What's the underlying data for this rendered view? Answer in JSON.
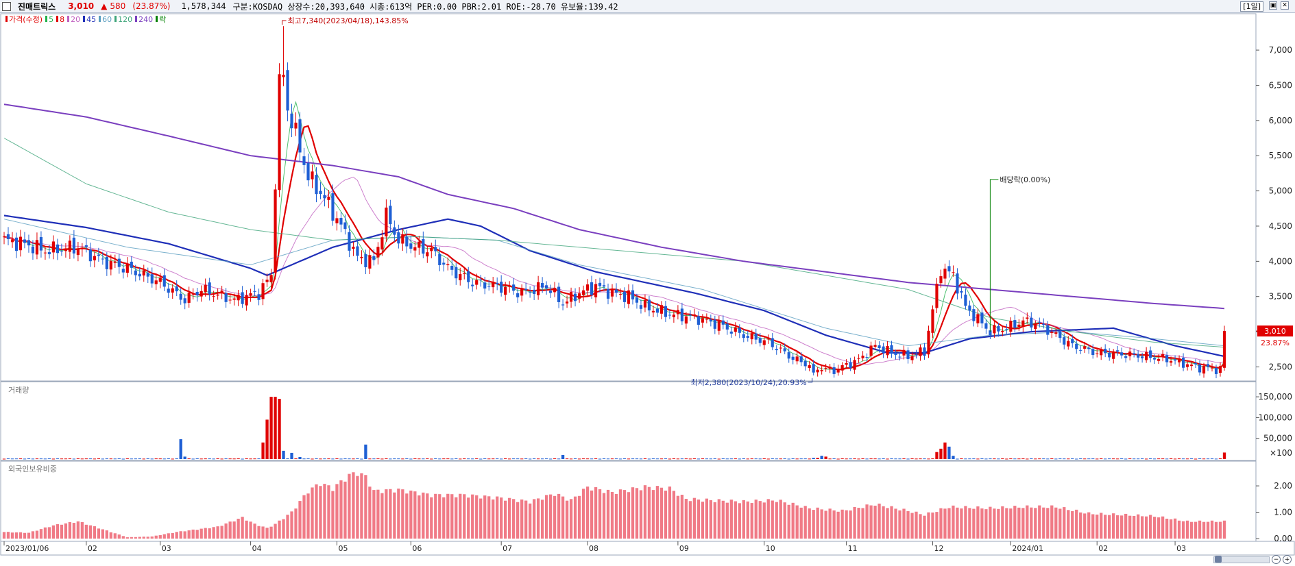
{
  "header": {
    "stock_name": "진매트릭스",
    "price": "3,010",
    "change_arrow": "▲",
    "change": "580",
    "change_pct": "(23.87%)",
    "volume": "1,578,344",
    "info": "구분:KOSDAQ 상장수:20,393,640 시총:613억 PER:0.00 PBR:2.01 ROE:-28.70 유보율:139.42",
    "period": "[1일]",
    "buttons": [
      "▣",
      "✕"
    ]
  },
  "legend": {
    "items": [
      {
        "label": "가격(수정)",
        "color": "#e00000"
      },
      {
        "label": "5",
        "color": "#22b14c"
      },
      {
        "label": "8",
        "color": "#e00000"
      },
      {
        "label": "20",
        "color": "#c060c0"
      },
      {
        "label": "45",
        "color": "#1f2fb8"
      },
      {
        "label": "60",
        "color": "#5a9ec0"
      },
      {
        "label": "120",
        "color": "#3fa57a"
      },
      {
        "label": "240",
        "color": "#7a3fbf"
      },
      {
        "label": "락",
        "color": "#008000"
      }
    ]
  },
  "volume_pane": {
    "title": "거래량"
  },
  "foreign_pane": {
    "title": "외국인보유비중"
  },
  "chart_data": [
    {
      "type": "candlestick",
      "title": "가격(수정)",
      "ylim": [
        2300,
        7400
      ],
      "y_ticks": [
        "7,000",
        "6,500",
        "6,000",
        "5,500",
        "5,000",
        "4,500",
        "4,000",
        "3,500",
        "3,000",
        "2,500"
      ],
      "y_tick_values": [
        7000,
        6500,
        6000,
        5500,
        5000,
        4500,
        4000,
        3500,
        3000,
        2500
      ],
      "x_labels": [
        "2023/01/06",
        "02",
        "03",
        "04",
        "05",
        "06",
        "07",
        "08",
        "09",
        "10",
        "11",
        "12",
        "2024/01",
        "02",
        "03"
      ],
      "x_label_days": [
        0,
        20,
        38,
        60,
        81,
        99,
        121,
        142,
        164,
        185,
        205,
        226,
        245,
        266,
        285
      ],
      "n_days": 298,
      "price_anchors": [
        [
          0,
          4300
        ],
        [
          5,
          4250
        ],
        [
          10,
          4150
        ],
        [
          18,
          4200
        ],
        [
          24,
          4000
        ],
        [
          30,
          3900
        ],
        [
          38,
          3700
        ],
        [
          44,
          3450
        ],
        [
          48,
          3600
        ],
        [
          56,
          3450
        ],
        [
          62,
          3550
        ],
        [
          65,
          3800
        ],
        [
          67,
          6500
        ],
        [
          70,
          6000
        ],
        [
          74,
          5200
        ],
        [
          78,
          4900
        ],
        [
          82,
          4500
        ],
        [
          86,
          4050
        ],
        [
          90,
          4000
        ],
        [
          93,
          4650
        ],
        [
          96,
          4300
        ],
        [
          100,
          4200
        ],
        [
          104,
          4150
        ],
        [
          108,
          3900
        ],
        [
          114,
          3700
        ],
        [
          120,
          3650
        ],
        [
          126,
          3550
        ],
        [
          132,
          3650
        ],
        [
          136,
          3400
        ],
        [
          140,
          3550
        ],
        [
          144,
          3650
        ],
        [
          148,
          3550
        ],
        [
          152,
          3500
        ],
        [
          156,
          3350
        ],
        [
          162,
          3250
        ],
        [
          168,
          3200
        ],
        [
          174,
          3100
        ],
        [
          180,
          2950
        ],
        [
          186,
          2850
        ],
        [
          192,
          2620
        ],
        [
          197,
          2500
        ],
        [
          202,
          2450
        ],
        [
          208,
          2600
        ],
        [
          212,
          2800
        ],
        [
          216,
          2700
        ],
        [
          220,
          2650
        ],
        [
          224,
          2720
        ],
        [
          228,
          3900
        ],
        [
          231,
          3800
        ],
        [
          234,
          3350
        ],
        [
          240,
          3000
        ],
        [
          244,
          3050
        ],
        [
          248,
          3150
        ],
        [
          252,
          3100
        ],
        [
          256,
          2950
        ],
        [
          260,
          2800
        ],
        [
          266,
          2700
        ],
        [
          272,
          2680
        ],
        [
          278,
          2650
        ],
        [
          284,
          2600
        ],
        [
          290,
          2500
        ],
        [
          296,
          2460
        ],
        [
          297,
          3010
        ]
      ],
      "last_price": "3,010",
      "last_change_pct": "23.87%",
      "annotations": {
        "high": "최고7,340(2023/04/18),143.85%",
        "low": "최저2,380(2023/10/24),20.93%",
        "dividend": "배당락(0.00%)"
      },
      "high_value": 7340,
      "high_day": 68,
      "low_value": 2380,
      "low_day": 197,
      "dividend_day": 240,
      "moving_averages": [
        {
          "name": "5",
          "color": "#22b14c",
          "width": 1,
          "period": 5
        },
        {
          "name": "8",
          "color": "#e00000",
          "width": 2.2,
          "period": 8
        },
        {
          "name": "20",
          "color": "#c060c0",
          "width": 1,
          "period": 20
        },
        {
          "name": "45",
          "color": "#1f2fb8",
          "width": 2.2,
          "anchors": [
            [
              0,
              4650
            ],
            [
              20,
              4480
            ],
            [
              40,
              4250
            ],
            [
              60,
              3900
            ],
            [
              64,
              3800
            ],
            [
              80,
              4200
            ],
            [
              96,
              4450
            ],
            [
              108,
              4600
            ],
            [
              116,
              4500
            ],
            [
              128,
              4150
            ],
            [
              144,
              3850
            ],
            [
              168,
              3550
            ],
            [
              185,
              3300
            ],
            [
              200,
              2950
            ],
            [
              215,
              2700
            ],
            [
              224,
              2700
            ],
            [
              235,
              2900
            ],
            [
              250,
              3000
            ],
            [
              270,
              3050
            ],
            [
              285,
              2800
            ],
            [
              297,
              2650
            ]
          ]
        },
        {
          "name": "60",
          "color": "#5a9ec0",
          "width": 1,
          "anchors": [
            [
              0,
              4600
            ],
            [
              30,
              4200
            ],
            [
              60,
              3950
            ],
            [
              80,
              4300
            ],
            [
              100,
              4350
            ],
            [
              120,
              4300
            ],
            [
              140,
              3950
            ],
            [
              170,
              3600
            ],
            [
              200,
              3050
            ],
            [
              220,
              2800
            ],
            [
              240,
              2950
            ],
            [
              260,
              3000
            ],
            [
              280,
              2900
            ],
            [
              297,
              2800
            ]
          ]
        },
        {
          "name": "120",
          "color": "#3fa57a",
          "width": 1,
          "anchors": [
            [
              0,
              5750
            ],
            [
              20,
              5100
            ],
            [
              40,
              4700
            ],
            [
              60,
              4450
            ],
            [
              80,
              4300
            ],
            [
              100,
              4350
            ],
            [
              120,
              4300
            ],
            [
              140,
              4200
            ],
            [
              160,
              4100
            ],
            [
              180,
              4000
            ],
            [
              200,
              3800
            ],
            [
              220,
              3600
            ],
            [
              240,
              3200
            ],
            [
              260,
              3000
            ],
            [
              280,
              2850
            ],
            [
              297,
              2780
            ]
          ]
        },
        {
          "name": "240",
          "color": "#7a3fbf",
          "width": 2,
          "anchors": [
            [
              0,
              6230
            ],
            [
              20,
              6050
            ],
            [
              40,
              5780
            ],
            [
              60,
              5500
            ],
            [
              80,
              5360
            ],
            [
              96,
              5200
            ],
            [
              108,
              4950
            ],
            [
              124,
              4750
            ],
            [
              140,
              4450
            ],
            [
              160,
              4200
            ],
            [
              180,
              4000
            ],
            [
              200,
              3850
            ],
            [
              220,
              3700
            ],
            [
              240,
              3600
            ],
            [
              260,
              3500
            ],
            [
              280,
              3400
            ],
            [
              297,
              3330
            ]
          ]
        }
      ]
    },
    {
      "type": "bar",
      "title": "거래량",
      "y_ticks": [
        "150,000",
        "100,000",
        "50,000",
        "×100"
      ],
      "y_tick_values": [
        150000,
        100000,
        50000
      ],
      "ylim": [
        0,
        165000
      ],
      "spikes": [
        [
          43,
          48000
        ],
        [
          44,
          6000
        ],
        [
          63,
          40000
        ],
        [
          64,
          95000
        ],
        [
          65,
          150000
        ],
        [
          66,
          150000
        ],
        [
          67,
          145000
        ],
        [
          68,
          20000
        ],
        [
          70,
          15000
        ],
        [
          72,
          5000
        ],
        [
          88,
          35000
        ],
        [
          136,
          10000
        ],
        [
          197,
          3000
        ],
        [
          198,
          3000
        ],
        [
          199,
          8000
        ],
        [
          200,
          6000
        ],
        [
          227,
          17000
        ],
        [
          228,
          25000
        ],
        [
          229,
          40000
        ],
        [
          230,
          30000
        ],
        [
          231,
          8000
        ],
        [
          297,
          15782
        ]
      ],
      "base": 1500
    },
    {
      "type": "bar",
      "title": "외국인보유비중",
      "y_ticks": [
        "2.00",
        "1.00",
        "0.00"
      ],
      "y_tick_values": [
        2,
        1,
        0
      ],
      "ylim": [
        0,
        2.6
      ],
      "anchors": [
        [
          0,
          0.25
        ],
        [
          6,
          0.22
        ],
        [
          12,
          0.5
        ],
        [
          18,
          0.65
        ],
        [
          24,
          0.35
        ],
        [
          30,
          0.05
        ],
        [
          36,
          0.08
        ],
        [
          42,
          0.25
        ],
        [
          52,
          0.45
        ],
        [
          58,
          0.8
        ],
        [
          61,
          0.55
        ],
        [
          64,
          0.4
        ],
        [
          66,
          0.55
        ],
        [
          70,
          1.0
        ],
        [
          74,
          1.8
        ],
        [
          77,
          2.1
        ],
        [
          80,
          1.9
        ],
        [
          84,
          2.4
        ],
        [
          86,
          2.5
        ],
        [
          88,
          2.35
        ],
        [
          90,
          1.8
        ],
        [
          96,
          1.85
        ],
        [
          104,
          1.65
        ],
        [
          112,
          1.65
        ],
        [
          120,
          1.55
        ],
        [
          128,
          1.4
        ],
        [
          134,
          1.7
        ],
        [
          138,
          1.45
        ],
        [
          142,
          1.95
        ],
        [
          148,
          1.75
        ],
        [
          156,
          1.95
        ],
        [
          162,
          1.9
        ],
        [
          166,
          1.5
        ],
        [
          172,
          1.45
        ],
        [
          180,
          1.4
        ],
        [
          188,
          1.45
        ],
        [
          196,
          1.15
        ],
        [
          204,
          1.05
        ],
        [
          212,
          1.3
        ],
        [
          220,
          1.05
        ],
        [
          224,
          0.9
        ],
        [
          230,
          1.2
        ],
        [
          240,
          1.15
        ],
        [
          248,
          1.2
        ],
        [
          256,
          1.2
        ],
        [
          264,
          0.95
        ],
        [
          272,
          0.9
        ],
        [
          280,
          0.85
        ],
        [
          288,
          0.65
        ],
        [
          297,
          0.65
        ]
      ]
    }
  ]
}
